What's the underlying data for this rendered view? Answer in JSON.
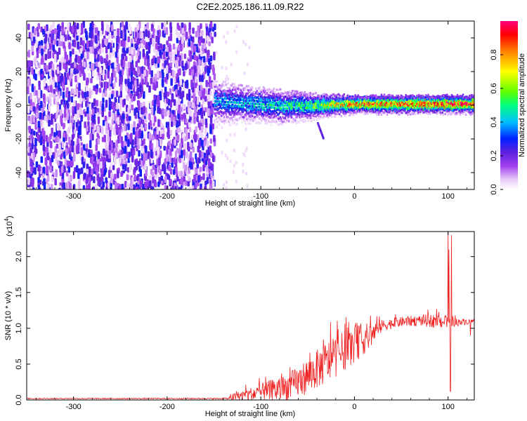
{
  "title": "C2E2.2025.186.11.09.R22",
  "chart_data": [
    {
      "type": "heatmap",
      "xlabel": "Height of straight line (km)",
      "ylabel": "Frequency (Hz)",
      "xlim": [
        -350,
        128
      ],
      "ylim": [
        -50,
        50
      ],
      "xticks": [
        -300,
        -200,
        -100,
        0,
        100
      ],
      "yticks": [
        -40,
        -20,
        0,
        20,
        40
      ],
      "colorbar": {
        "label": "Normalized spectral amplitude",
        "range": [
          0,
          1
        ],
        "ticks": [
          "0.0",
          "0.2",
          "0.4",
          "0.6",
          "0.8"
        ],
        "colors": [
          "#ffffff",
          "#e8c8f8",
          "#a040f0",
          "#6020e0",
          "#0020ff",
          "#00c0ff",
          "#00ff80",
          "#60ff00",
          "#ffff00",
          "#ff8000",
          "#ff0000",
          "#ff0080"
        ]
      },
      "noise_region": {
        "x": [
          -350,
          -150
        ],
        "freq": [
          -50,
          50
        ],
        "amplitude": [
          0.05,
          0.35
        ]
      },
      "signal_band": [
        {
          "x": -150,
          "center": 3.0,
          "halfwidth": 7.0,
          "peak": 0.45
        },
        {
          "x": -120,
          "center": 2.0,
          "halfwidth": 6.0,
          "peak": 0.5
        },
        {
          "x": -80,
          "center": 0.5,
          "halfwidth": 5.5,
          "peak": 0.55
        },
        {
          "x": -50,
          "center": 0.5,
          "halfwidth": 4.5,
          "peak": 0.6
        },
        {
          "x": -25,
          "center": 1.0,
          "halfwidth": 3.5,
          "peak": 0.75
        },
        {
          "x": 0,
          "center": 1.5,
          "halfwidth": 3.0,
          "peak": 0.85
        },
        {
          "x": 50,
          "center": 1.5,
          "halfwidth": 3.0,
          "peak": 0.9
        },
        {
          "x": 100,
          "center": 1.5,
          "halfwidth": 3.0,
          "peak": 0.95
        },
        {
          "x": 128,
          "center": 1.5,
          "halfwidth": 3.0,
          "peak": 0.95
        }
      ],
      "side_streak": {
        "x": [
          -40,
          -34
        ],
        "freq": [
          -19,
          -10
        ]
      }
    },
    {
      "type": "line",
      "xlabel": "Height of straight line (km)",
      "ylabel": "SNR (10 * v/v)",
      "multiplier_label": "(x10",
      "multiplier_exponent": "4",
      "xlim": [
        -350,
        128
      ],
      "ylim": [
        0,
        23500
      ],
      "xticks": [
        -300,
        -200,
        -100,
        0,
        100
      ],
      "yticks": [
        {
          "value": 0,
          "label": "0.0"
        },
        {
          "value": 5000,
          "label": "0.5"
        },
        {
          "value": 10000,
          "label": "1.0"
        },
        {
          "value": 15000,
          "label": "1.5"
        },
        {
          "value": 20000,
          "label": "2.0"
        }
      ],
      "color": "#ee2222",
      "envelope": [
        {
          "x": -350,
          "mean": 200,
          "noise": 60
        },
        {
          "x": -135,
          "mean": 200,
          "noise": 80
        },
        {
          "x": -130,
          "mean": 400,
          "noise": 500
        },
        {
          "x": -110,
          "mean": 800,
          "noise": 1000
        },
        {
          "x": -90,
          "mean": 1200,
          "noise": 1600
        },
        {
          "x": -75,
          "mean": 1600,
          "noise": 1800
        },
        {
          "x": -60,
          "mean": 2500,
          "noise": 2200
        },
        {
          "x": -45,
          "mean": 3800,
          "noise": 2600
        },
        {
          "x": -30,
          "mean": 5200,
          "noise": 3000
        },
        {
          "x": -15,
          "mean": 6500,
          "noise": 2800
        },
        {
          "x": 0,
          "mean": 7800,
          "noise": 2600
        },
        {
          "x": 15,
          "mean": 8800,
          "noise": 2000
        },
        {
          "x": 30,
          "mean": 10400,
          "noise": 800
        },
        {
          "x": 50,
          "mean": 10900,
          "noise": 700
        },
        {
          "x": 70,
          "mean": 11100,
          "noise": 800
        },
        {
          "x": 90,
          "mean": 11000,
          "noise": 1000
        },
        {
          "x": 105,
          "mean": 10800,
          "noise": 600
        },
        {
          "x": 128,
          "mean": 11000,
          "noise": 300
        }
      ],
      "features": [
        {
          "x": 100,
          "value": 23500,
          "kind": "spike"
        },
        {
          "x": 101,
          "value": 21000,
          "kind": "spike"
        },
        {
          "x": 102.5,
          "value": 1200,
          "kind": "dip"
        },
        {
          "x": 103.5,
          "value": 23000,
          "kind": "spike"
        },
        {
          "x": 124,
          "value": 9000,
          "kind": "dip"
        }
      ]
    }
  ]
}
